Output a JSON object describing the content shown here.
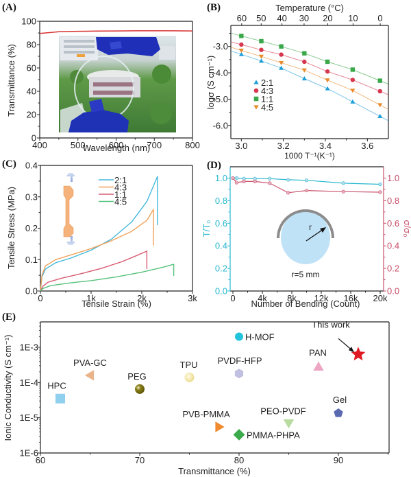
{
  "chart_data": [
    {
      "panel": "(A)",
      "type": "line",
      "xlabel": "Wavelength (nm)",
      "ylabel": "Transmittance (%)",
      "xlim": [
        400,
        800
      ],
      "ylim": [
        0,
        100
      ],
      "xticks": [
        "400",
        "500",
        "600",
        "700",
        "800"
      ],
      "yticks": [
        "0",
        "20",
        "40",
        "60",
        "80",
        "100"
      ],
      "series": [
        {
          "name": "Transmittance",
          "color": "#d83030",
          "x": [
            400,
            450,
            500,
            550,
            600,
            650,
            700,
            750,
            800
          ],
          "y": [
            89.5,
            91.0,
            91.4,
            91.6,
            91.7,
            91.8,
            91.8,
            91.8,
            91.7
          ]
        }
      ],
      "inset": "photo of transparent film held with blue gloves in front of a building"
    },
    {
      "panel": "(B)",
      "type": "scatter",
      "xlabel": "1000 T⁻¹(K⁻¹)",
      "ylabel": "logσ (S cm⁻¹)",
      "x2label": "Temperature (°C)",
      "xlim": [
        2.95,
        3.7
      ],
      "ylim": [
        -6.5,
        -2.2
      ],
      "xticks": [
        "3.0",
        "3.2",
        "3.4",
        "3.6"
      ],
      "yticks": [
        "-6.0",
        "-5.0",
        "-4.0",
        "-3.0"
      ],
      "x2ticks": [
        "60",
        "50",
        "40",
        "30",
        "20",
        "10",
        "0"
      ],
      "legend": "middle-left",
      "x": [
        3.0,
        3.095,
        3.19,
        3.3,
        3.41,
        3.53,
        3.66
      ],
      "series": [
        {
          "name": "2:1",
          "marker": "triangle-up",
          "color": "#1e9fd8",
          "y": [
            -3.3,
            -3.55,
            -3.82,
            -4.22,
            -4.6,
            -5.1,
            -5.65
          ]
        },
        {
          "name": "4:3",
          "marker": "circle",
          "color": "#d6364e",
          "y": [
            -2.93,
            -3.13,
            -3.31,
            -3.58,
            -3.95,
            -4.27,
            -4.7
          ]
        },
        {
          "name": "1:1",
          "marker": "square",
          "color": "#3aa84a",
          "y": [
            -2.6,
            -2.8,
            -3.0,
            -3.26,
            -3.58,
            -3.88,
            -4.3
          ]
        },
        {
          "name": "4:5",
          "marker": "triangle-down",
          "color": "#e88a2a",
          "y": [
            -3.15,
            -3.38,
            -3.62,
            -3.9,
            -4.28,
            -4.67,
            -5.22
          ]
        }
      ]
    },
    {
      "panel": "(C)",
      "type": "line",
      "xlabel": "Tensile Strain (%)",
      "ylabel": "Tensile Stress (MPa)",
      "xlim": [
        0,
        3000
      ],
      "ylim": [
        0,
        0.4
      ],
      "xticks": [
        "0",
        "1k",
        "2k",
        "3k"
      ],
      "yticks": [
        "0.0",
        "0.1",
        "0.2",
        "0.3",
        "0.4"
      ],
      "legend": "top-center",
      "series": [
        {
          "name": "2:1",
          "color": "#44b8dc",
          "x": [
            0,
            30,
            100,
            300,
            600,
            1000,
            1400,
            1800,
            2100,
            2310,
            2310
          ],
          "y": [
            0,
            0.045,
            0.07,
            0.09,
            0.105,
            0.13,
            0.165,
            0.22,
            0.285,
            0.365,
            0.21
          ]
        },
        {
          "name": "4:3",
          "color": "#f0a25a",
          "x": [
            0,
            30,
            100,
            300,
            600,
            1000,
            1400,
            1800,
            2100,
            2230,
            2230
          ],
          "y": [
            0,
            0.05,
            0.08,
            0.1,
            0.115,
            0.135,
            0.16,
            0.19,
            0.225,
            0.26,
            0.145
          ]
        },
        {
          "name": "1:1",
          "color": "#d85a72",
          "x": [
            0,
            50,
            150,
            400,
            800,
            1200,
            1600,
            1900,
            2100,
            2100
          ],
          "y": [
            0,
            0.015,
            0.028,
            0.04,
            0.055,
            0.072,
            0.093,
            0.113,
            0.127,
            0.07
          ]
        },
        {
          "name": "4:5",
          "color": "#55c27a",
          "x": [
            0,
            50,
            200,
            600,
            1000,
            1500,
            2000,
            2400,
            2630,
            2630
          ],
          "y": [
            0,
            0.008,
            0.017,
            0.026,
            0.033,
            0.045,
            0.06,
            0.075,
            0.085,
            0.048
          ]
        }
      ],
      "inset": "dog-bone tensile specimen with stretch arrows"
    },
    {
      "panel": "(D)",
      "type": "line",
      "xlabel": "Number of Bending (Count)",
      "ylabel": "T/T₀",
      "y2label": "σ/σ₀",
      "xlim": [
        -500,
        21000
      ],
      "ylim": [
        0,
        1.1
      ],
      "xticks": [
        "0",
        "4k",
        "8k",
        "12k",
        "16k",
        "20k"
      ],
      "yticks": [
        "0.0",
        "0.2",
        "0.4",
        "0.6",
        "0.8",
        "1.0"
      ],
      "y2ticks": [
        "0.0",
        "0.2",
        "0.4",
        "0.6",
        "0.8",
        "1.0"
      ],
      "x": [
        0,
        500,
        1500,
        3000,
        5000,
        7500,
        10000,
        15000,
        20000
      ],
      "series": [
        {
          "name": "T/T0",
          "axis": "left",
          "color": "#2ab8d0",
          "y": [
            1.0,
            1.0,
            0.995,
            0.995,
            0.995,
            0.985,
            0.98,
            0.955,
            0.945
          ]
        },
        {
          "name": "σ/σ0",
          "axis": "right",
          "color": "#c8506a",
          "y": [
            1.0,
            0.96,
            0.97,
            0.97,
            0.955,
            0.87,
            0.89,
            0.88,
            0.875
          ]
        }
      ],
      "inset_label": "r=5 mm",
      "inset_radius_label": "r"
    },
    {
      "panel": "(E)",
      "type": "scatter",
      "xlabel": "Transmittance (%)",
      "ylabel": "Ionic Conductivity (S cm⁻¹)",
      "xlim": [
        60,
        96
      ],
      "ylim_log10": [
        -6,
        -2.6
      ],
      "xticks": [
        "60",
        "70",
        "80",
        "90"
      ],
      "yticks": [
        "1E-6",
        "1E-5",
        "1E-4",
        "1E-3"
      ],
      "annotation": "This work",
      "points": [
        {
          "label": "HPC",
          "x": 62,
          "y": 3.5e-05,
          "marker": "square",
          "color": "#8fd0ef"
        },
        {
          "label": "PVA-GC",
          "x": 65,
          "y": 0.00016,
          "marker": "triangle-left",
          "color": "#e9b48a"
        },
        {
          "label": "PEG",
          "x": 70,
          "y": 6.5e-05,
          "marker": "sphere",
          "color": "#7a7010"
        },
        {
          "label": "TPU",
          "x": 75,
          "y": 0.00014,
          "marker": "sphere",
          "color": "#f2e39a"
        },
        {
          "label": "H-MOF",
          "x": 80,
          "y": 0.002,
          "marker": "circle",
          "color": "#22c4dc"
        },
        {
          "label": "PVDF-HFP",
          "x": 80,
          "y": 0.00018,
          "marker": "hexagon",
          "color": "#c0c0e0"
        },
        {
          "label": "PVB-PMMA",
          "x": 78,
          "y": 5.5e-06,
          "marker": "triangle-right",
          "color": "#f08a2c"
        },
        {
          "label": "PMMA-PHPA",
          "x": 80,
          "y": 3.3e-06,
          "marker": "diamond",
          "color": "#3aaa4a"
        },
        {
          "label": "PEO-PVDF",
          "x": 85,
          "y": 7e-06,
          "marker": "triangle-down",
          "color": "#b8dca0"
        },
        {
          "label": "PAN",
          "x": 88,
          "y": 0.00028,
          "marker": "triangle-up",
          "color": "#eca6c4"
        },
        {
          "label": "Gel",
          "x": 90,
          "y": 1.35e-05,
          "marker": "pentagon",
          "color": "#5a6ab0"
        },
        {
          "label": "This work",
          "x": 92,
          "y": 0.00063,
          "marker": "star",
          "color": "#e01a22"
        }
      ]
    }
  ]
}
